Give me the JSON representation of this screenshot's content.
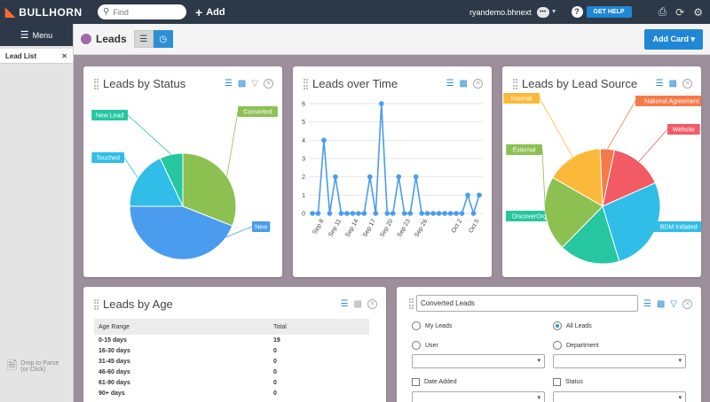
{
  "topbar": {
    "brand": "BULLHORN",
    "search_placeholder": "Find",
    "add_label": "Add",
    "username": "ryandemo.bhnext",
    "help_label": "GET HELP"
  },
  "sidebar": {
    "menu_label": "Menu",
    "tab_label": "Lead List",
    "parse_line1": "Drop to Parse",
    "parse_line2": "(or Click)"
  },
  "header": {
    "title": "Leads",
    "add_card_label": "Add Card"
  },
  "cards": {
    "status": {
      "title": "Leads by Status",
      "chart_data": {
        "type": "pie",
        "slices": [
          {
            "label": "Converted",
            "value": 31,
            "color": "#8cc152"
          },
          {
            "label": "New",
            "value": 44,
            "color": "#4a9cee"
          },
          {
            "label": "Touched",
            "value": 18,
            "color": "#30bde8"
          },
          {
            "label": "New Lead",
            "value": 7,
            "color": "#26c6a0"
          }
        ]
      }
    },
    "time": {
      "title": "Leads over Time",
      "chart_data": {
        "type": "line",
        "x": [
          "Sep 6",
          "Sep 7",
          "Sep 8",
          "Sep 9",
          "Sep 10",
          "Sep 11",
          "Sep 12",
          "Sep 13",
          "Sep 14",
          "Sep 15",
          "Sep 16",
          "Sep 17",
          "Sep 18",
          "Sep 19",
          "Sep 20",
          "Sep 21",
          "Sep 22",
          "Sep 23",
          "Sep 24",
          "Sep 25",
          "Sep 26",
          "Sep 27",
          "Sep 28",
          "Sep 29",
          "Sep 30",
          "Oct 1",
          "Oct 2",
          "Oct 3",
          "Oct 4",
          "Oct 5"
        ],
        "x_tick_labels": [
          "Sep 8",
          "Sep 11",
          "Sep 14",
          "Sep 17",
          "Sep 20",
          "Sep 23",
          "Sep 26",
          "Oct 2",
          "Oct 5"
        ],
        "values": [
          0,
          0,
          4,
          0,
          2,
          0,
          0,
          0,
          0,
          0,
          2,
          0,
          6,
          0,
          0,
          2,
          0,
          0,
          2,
          0,
          0,
          0,
          0,
          0,
          0,
          0,
          0,
          1,
          0,
          1
        ],
        "ylim": [
          0,
          6
        ],
        "y_ticks": [
          0,
          1,
          2,
          3,
          4,
          5,
          6
        ],
        "color": "#4a9cee",
        "grid": true
      }
    },
    "source": {
      "title": "Leads by Lead Source",
      "chart_data": {
        "type": "pie",
        "slices": [
          {
            "label": "Internal",
            "value": 16,
            "color": "#fbb93a"
          },
          {
            "label": "National Agreement",
            "value": 4,
            "color": "#f57a4a"
          },
          {
            "label": "Website",
            "value": 15,
            "color": "#f25a64"
          },
          {
            "label": "BDM Initiated",
            "value": 27,
            "color": "#30bde8"
          },
          {
            "label": "DiscoverOrg",
            "value": 17,
            "color": "#26c6a0"
          },
          {
            "label": "External",
            "value": 21,
            "color": "#8cc152"
          }
        ]
      }
    },
    "age": {
      "title": "Leads by Age",
      "col_range": "Age Range",
      "col_total": "Total",
      "rows": [
        {
          "range": "0-15 days",
          "total": "19"
        },
        {
          "range": "16-30 days",
          "total": "0"
        },
        {
          "range": "31-45 days",
          "total": "0"
        },
        {
          "range": "46-60 days",
          "total": "0"
        },
        {
          "range": "61-90 days",
          "total": "0"
        },
        {
          "range": "90+ days",
          "total": "0"
        }
      ]
    },
    "converted": {
      "title_value": "Converted Leads",
      "my_leads": "My Leads",
      "all_leads": "All Leads",
      "user": "User",
      "department": "Department",
      "date_added": "Date Added",
      "status": "Status"
    }
  }
}
